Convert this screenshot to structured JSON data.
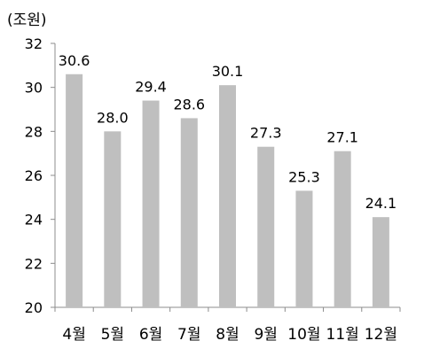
{
  "chart_data": {
    "type": "bar",
    "unit_label": "(조원)",
    "categories": [
      "4월",
      "5월",
      "6월",
      "7월",
      "8월",
      "9월",
      "10월",
      "11월",
      "12월"
    ],
    "values": [
      30.6,
      28.0,
      29.4,
      28.6,
      30.1,
      27.3,
      25.3,
      27.1,
      24.1
    ],
    "value_labels": [
      "30.6",
      "28.0",
      "29.4",
      "28.6",
      "30.1",
      "27.3",
      "25.3",
      "27.1",
      "24.1"
    ],
    "ylim": [
      20,
      32
    ],
    "yticks": [
      20,
      22,
      24,
      26,
      28,
      30,
      32
    ],
    "ytick_labels": [
      "20",
      "22",
      "24",
      "26",
      "28",
      "30",
      "32"
    ],
    "grid": false,
    "legend": "none",
    "bar_color": "#bfbfbf",
    "axis_color": "#8c8c8c"
  }
}
